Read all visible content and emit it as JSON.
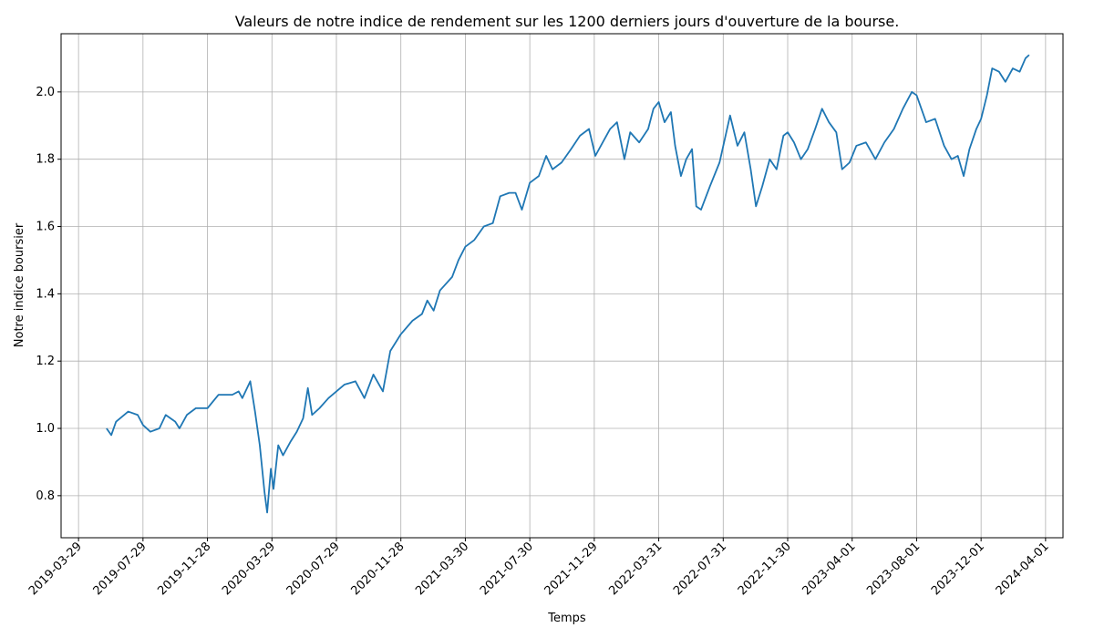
{
  "chart_data": {
    "type": "line",
    "title": "Valeurs de notre indice de rendement sur les 1200 derniers jours d'ouverture de la bourse.",
    "x_label": "Temps",
    "y_label": "Notre indice boursier",
    "color": "#1f77b4",
    "grid": true,
    "x": [
      "2019-05-21",
      "2019-05-30",
      "2019-06-08",
      "2019-07-01",
      "2019-07-19",
      "2019-07-29",
      "2019-08-12",
      "2019-08-29",
      "2019-09-10",
      "2019-09-28",
      "2019-10-06",
      "2019-10-20",
      "2019-11-06",
      "2019-11-28",
      "2019-12-19",
      "2020-01-14",
      "2020-01-26",
      "2020-02-02",
      "2020-02-17",
      "2020-02-26",
      "2020-03-06",
      "2020-03-15",
      "2020-03-20",
      "2020-03-27",
      "2020-04-01",
      "2020-04-10",
      "2020-04-19",
      "2020-05-03",
      "2020-05-15",
      "2020-05-27",
      "2020-06-05",
      "2020-06-13",
      "2020-06-27",
      "2020-07-14",
      "2020-07-29",
      "2020-08-13",
      "2020-09-03",
      "2020-09-20",
      "2020-10-07",
      "2020-10-25",
      "2020-11-08",
      "2020-11-28",
      "2020-12-20",
      "2021-01-07",
      "2021-01-17",
      "2021-01-29",
      "2021-02-10",
      "2021-03-05",
      "2021-03-17",
      "2021-03-30",
      "2021-04-16",
      "2021-05-04",
      "2021-05-21",
      "2021-06-04",
      "2021-06-21",
      "2021-07-03",
      "2021-07-15",
      "2021-07-30",
      "2021-08-16",
      "2021-08-30",
      "2021-09-11",
      "2021-09-28",
      "2021-10-16",
      "2021-11-02",
      "2021-11-19",
      "2021-12-01",
      "2021-12-15",
      "2021-12-29",
      "2022-01-11",
      "2022-01-25",
      "2022-02-05",
      "2022-02-22",
      "2022-03-11",
      "2022-03-21",
      "2022-03-31",
      "2022-04-11",
      "2022-04-23",
      "2022-05-01",
      "2022-05-12",
      "2022-05-22",
      "2022-06-02",
      "2022-06-10",
      "2022-06-19",
      "2022-07-06",
      "2022-07-24",
      "2022-08-13",
      "2022-08-27",
      "2022-09-09",
      "2022-09-21",
      "2022-10-01",
      "2022-10-13",
      "2022-10-27",
      "2022-11-09",
      "2022-11-22",
      "2022-11-30",
      "2022-12-12",
      "2022-12-25",
      "2023-01-07",
      "2023-01-21",
      "2023-02-03",
      "2023-02-16",
      "2023-03-02",
      "2023-03-13",
      "2023-03-27",
      "2023-04-09",
      "2023-04-27",
      "2023-05-15",
      "2023-06-01",
      "2023-06-19",
      "2023-07-06",
      "2023-07-23",
      "2023-08-01",
      "2023-08-19",
      "2023-09-05",
      "2023-09-22",
      "2023-10-06",
      "2023-10-18",
      "2023-10-29",
      "2023-11-09",
      "2023-11-22",
      "2023-12-01",
      "2023-12-12",
      "2023-12-22",
      "2024-01-04",
      "2024-01-16",
      "2024-01-30",
      "2024-02-12",
      "2024-02-23",
      "2024-03-01"
    ],
    "values": [
      1.0,
      0.98,
      1.02,
      1.05,
      1.04,
      1.01,
      0.99,
      1.0,
      1.04,
      1.02,
      1.0,
      1.04,
      1.06,
      1.06,
      1.1,
      1.1,
      1.11,
      1.09,
      1.14,
      1.05,
      0.95,
      0.81,
      0.75,
      0.88,
      0.82,
      0.95,
      0.92,
      0.96,
      0.99,
      1.03,
      1.12,
      1.04,
      1.06,
      1.09,
      1.11,
      1.13,
      1.14,
      1.09,
      1.16,
      1.11,
      1.23,
      1.28,
      1.32,
      1.34,
      1.38,
      1.35,
      1.41,
      1.45,
      1.5,
      1.54,
      1.56,
      1.6,
      1.61,
      1.69,
      1.7,
      1.7,
      1.65,
      1.73,
      1.75,
      1.81,
      1.77,
      1.79,
      1.83,
      1.87,
      1.89,
      1.81,
      1.85,
      1.89,
      1.91,
      1.8,
      1.88,
      1.85,
      1.89,
      1.95,
      1.97,
      1.91,
      1.94,
      1.84,
      1.75,
      1.8,
      1.83,
      1.66,
      1.65,
      1.72,
      1.79,
      1.93,
      1.84,
      1.88,
      1.77,
      1.66,
      1.72,
      1.8,
      1.77,
      1.87,
      1.88,
      1.85,
      1.8,
      1.83,
      1.89,
      1.95,
      1.91,
      1.88,
      1.77,
      1.79,
      1.84,
      1.85,
      1.8,
      1.85,
      1.89,
      1.95,
      2.0,
      1.99,
      1.91,
      1.92,
      1.84,
      1.8,
      1.81,
      1.75,
      1.83,
      1.89,
      1.92,
      1.99,
      2.07,
      2.06,
      2.03,
      2.07,
      2.06,
      2.1,
      2.11
    ],
    "xlim": [
      "2019-02-24",
      "2024-05-04"
    ],
    "xticks": [
      "2019-03-29",
      "2019-07-29",
      "2019-11-28",
      "2020-03-29",
      "2020-07-29",
      "2020-11-28",
      "2021-03-30",
      "2021-07-30",
      "2021-11-29",
      "2022-03-31",
      "2022-07-31",
      "2022-11-30",
      "2023-04-01",
      "2023-08-01",
      "2023-12-01",
      "2024-04-01"
    ],
    "ylim": [
      0.675,
      2.173
    ],
    "yticks": [
      0.8,
      {
        "value": 1,
        "label": "1.0"
      },
      1.2,
      1.4,
      1.6,
      1.8,
      {
        "value": 2,
        "label": "2.0"
      }
    ]
  }
}
